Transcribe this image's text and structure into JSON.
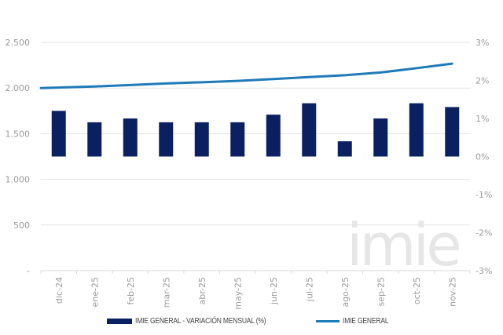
{
  "chart_data": {
    "type": "bar+line",
    "title": "",
    "categories": [
      "dic-24",
      "ene-25",
      "feb-25",
      "mar-25",
      "abr-25",
      "may-25",
      "jun-25",
      "jul-25",
      "ago-25",
      "sep-25",
      "oct-25",
      "nov-25"
    ],
    "series": [
      {
        "name": "IMIE GENERAL - VARIACIÓN MENSUAL (%)",
        "type": "bar",
        "axis": "right",
        "color": "#0b2060",
        "values": [
          1.2,
          0.9,
          1.0,
          0.9,
          0.9,
          0.9,
          1.1,
          1.4,
          0.4,
          1.0,
          1.4,
          1.3
        ]
      },
      {
        "name": "IMIE GENERAL",
        "type": "line",
        "axis": "left",
        "color": "#1f7ab8",
        "values": [
          2000,
          2017,
          2033,
          2050,
          2063,
          2078,
          2098,
          2120,
          2140,
          2170,
          2217,
          2267
        ]
      }
    ],
    "left_axis": {
      "ylim": [
        0,
        2500
      ],
      "ticks": [
        "-",
        "500",
        "1.000",
        "1.500",
        "2.000",
        "2.500"
      ]
    },
    "right_axis": {
      "ylim": [
        -3,
        3
      ],
      "ticks": [
        "-3%",
        "-2%",
        "-1%",
        "0%",
        "1%",
        "2%",
        "3%"
      ]
    },
    "grid": true,
    "legend_position": "bottom",
    "watermark": "imie"
  },
  "legend": {
    "bar_label": "IMIE GENERAL - VARIACIÓN MENSUAL (%)",
    "line_label": "IMIE GENERAL"
  }
}
